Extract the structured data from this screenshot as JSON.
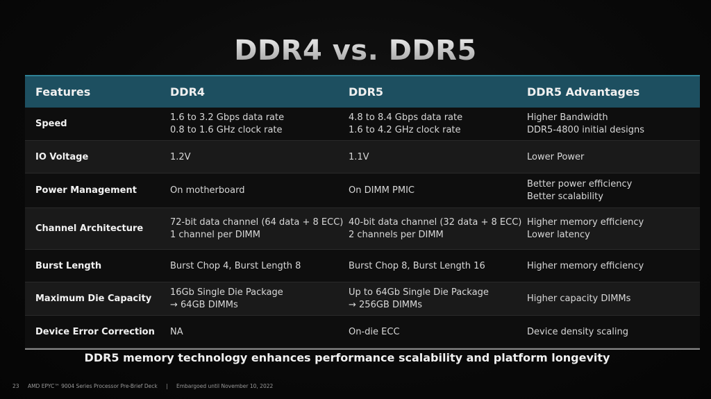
{
  "slide": {
    "title": "DDR4 vs. DDR5",
    "tagline": "DDR5 memory technology enhances performance scalability and platform longevity",
    "footer": {
      "page_number": "23",
      "deck_name": "AMD EPYC™ 9004 Series Processor Pre-Brief Deck",
      "separator": "|",
      "embargo": "Embargoed until November 10, 2022"
    }
  },
  "table": {
    "headers": [
      "Features",
      "DDR4",
      "DDR5",
      "DDR5 Advantages"
    ],
    "rows": [
      {
        "feature": "Speed",
        "ddr4": [
          "1.6 to 3.2 Gbps data rate",
          "0.8 to 1.6 GHz clock rate"
        ],
        "ddr5": [
          "4.8 to 8.4 Gbps data rate",
          "1.6 to 4.2 GHz clock rate"
        ],
        "advantages": [
          "Higher Bandwidth",
          "DDR5-4800 initial designs"
        ]
      },
      {
        "feature": "IO Voltage",
        "ddr4": [
          "1.2V"
        ],
        "ddr5": [
          "1.1V"
        ],
        "advantages": [
          "Lower Power"
        ]
      },
      {
        "feature": "Power Management",
        "ddr4": [
          "On motherboard"
        ],
        "ddr5": [
          "On DIMM PMIC"
        ],
        "advantages": [
          "Better power efficiency",
          "Better scalability"
        ]
      },
      {
        "feature": "Channel Architecture",
        "ddr4": [
          "72-bit data channel (64 data + 8 ECC)",
          "1 channel per DIMM"
        ],
        "ddr5": [
          "40-bit data channel (32 data + 8 ECC)",
          "2 channels per DIMM"
        ],
        "advantages": [
          "Higher memory efficiency",
          "Lower latency"
        ]
      },
      {
        "feature": "Burst Length",
        "ddr4": [
          "Burst Chop 4, Burst Length 8"
        ],
        "ddr5": [
          "Burst Chop 8, Burst Length 16"
        ],
        "advantages": [
          "Higher memory efficiency"
        ]
      },
      {
        "feature": "Maximum Die Capacity",
        "ddr4": [
          "16Gb Single Die Package",
          "→ 64GB DIMMs"
        ],
        "ddr5": [
          "Up to 64Gb Single Die Package",
          "→ 256GB DIMMs"
        ],
        "advantages": [
          "Higher capacity DIMMs"
        ]
      },
      {
        "feature": "Device Error Correction",
        "ddr4": [
          "NA"
        ],
        "ddr5": [
          "On-die ECC"
        ],
        "advantages": [
          "Device density scaling"
        ]
      }
    ]
  },
  "colors": {
    "header_bg": "#1d4f60",
    "header_border": "#2f8296",
    "row_dark": "#0e0e0e",
    "row_light": "#1a1a1a"
  }
}
